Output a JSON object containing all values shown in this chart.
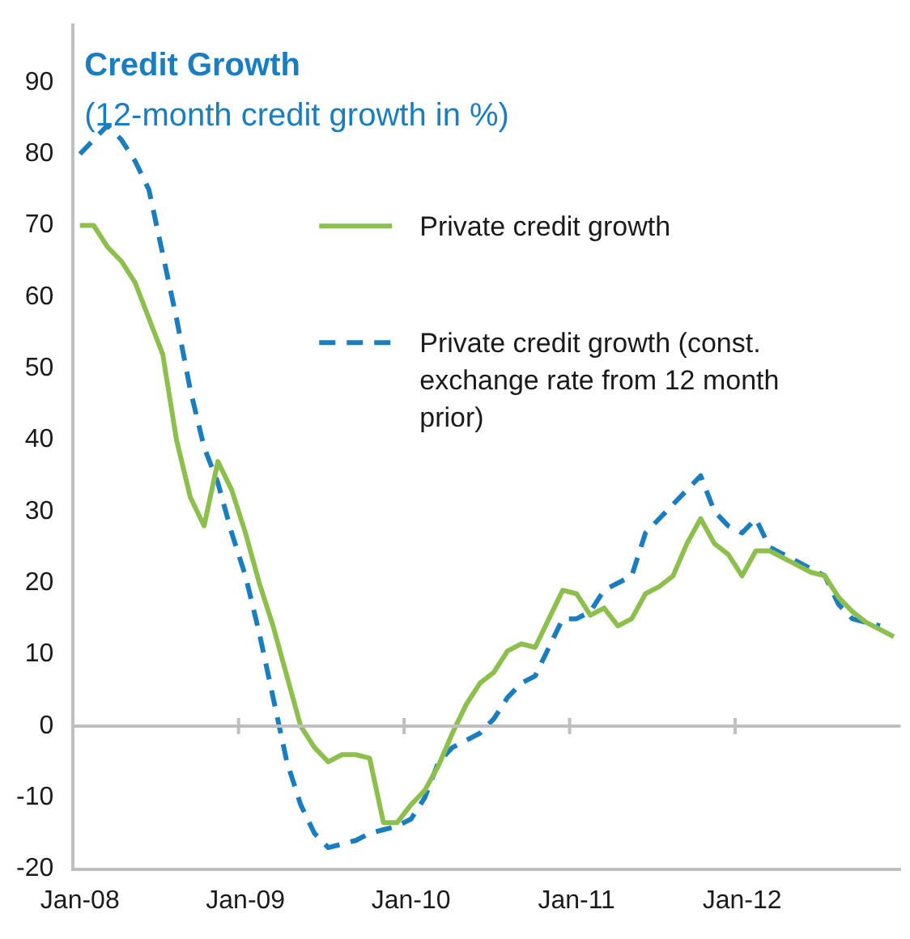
{
  "chart_data": {
    "type": "line",
    "title": "Credit Growth",
    "subtitle": "(12-month credit growth in %)",
    "categories": [
      "Jan-08",
      null,
      null,
      null,
      null,
      null,
      null,
      null,
      null,
      null,
      null,
      null,
      "Jan-09",
      null,
      null,
      null,
      null,
      null,
      null,
      null,
      null,
      null,
      null,
      null,
      "Jan-10",
      null,
      null,
      null,
      null,
      null,
      null,
      null,
      null,
      null,
      null,
      null,
      "Jan-11",
      null,
      null,
      null,
      null,
      null,
      null,
      null,
      null,
      null,
      null,
      null,
      "Jan-12",
      null,
      null,
      null,
      null,
      null,
      null,
      null,
      null,
      null,
      null,
      null
    ],
    "series": [
      {
        "name": "Private credit growth",
        "color": "#8cbf4c",
        "line_style": "solid",
        "values": [
          70,
          70,
          67,
          65,
          62,
          57,
          52,
          40,
          32,
          28,
          37,
          33,
          27,
          20,
          14,
          7,
          0,
          -3,
          -5,
          -4,
          -4,
          -4.5,
          -13.5,
          -13.5,
          -11,
          -9,
          -5.5,
          -1,
          3,
          6,
          7.5,
          10.5,
          11.5,
          11,
          15,
          19,
          18.5,
          15.5,
          16.5,
          14,
          15,
          18.5,
          19.5,
          21,
          25.5,
          29,
          25.5,
          24,
          21,
          24.5,
          24.5,
          23.5,
          22.5,
          21.5,
          21,
          18,
          16,
          14.5,
          13.5,
          12.5
        ]
      },
      {
        "name": "Private credit growth (const. exchange rate from 12 month prior)",
        "color": "#1a7dc0",
        "line_style": "dashed",
        "values": [
          80,
          82,
          84,
          82,
          79,
          75,
          66,
          57,
          47,
          39,
          34,
          27,
          21,
          13,
          4,
          -5,
          -11,
          -15,
          -17,
          -16.5,
          -16,
          -15,
          -14.5,
          -14,
          -13,
          -10,
          -5,
          -3,
          -2,
          -1,
          1,
          4,
          6,
          7,
          11,
          15,
          15,
          16,
          19,
          20,
          21,
          27,
          29,
          31,
          33,
          35,
          30,
          28,
          27,
          29,
          25,
          24,
          23,
          22,
          21,
          17,
          15,
          14.5,
          14,
          null
        ]
      }
    ],
    "ylim": [
      -20,
      98
    ],
    "yticks": [
      -20,
      -10,
      0,
      10,
      20,
      30,
      40,
      50,
      60,
      70,
      80,
      90
    ],
    "ref_lines": [
      {
        "axis": "y",
        "value": 0,
        "color": "#bfbfbf"
      }
    ],
    "grid": false,
    "legend": "right",
    "marker": "none"
  }
}
